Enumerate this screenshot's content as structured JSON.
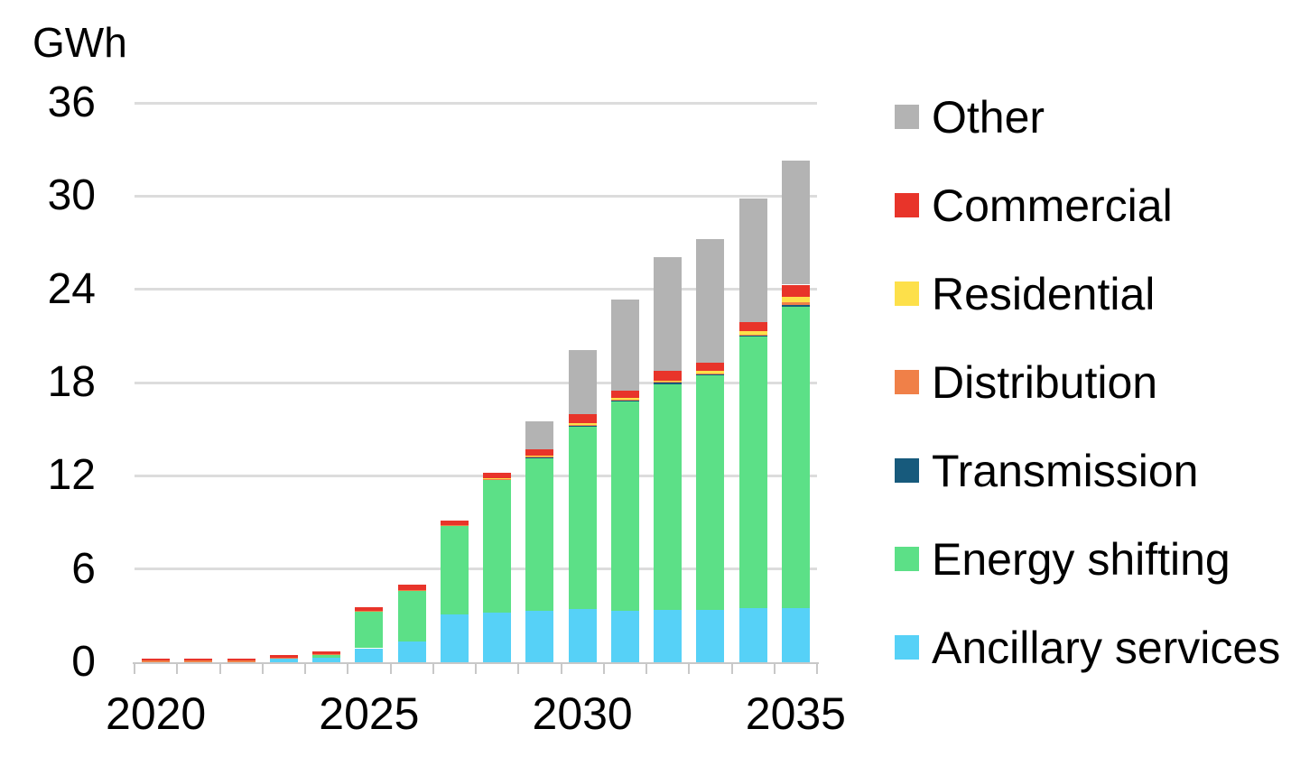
{
  "chart_data": {
    "type": "bar",
    "stacked": true,
    "ylabel": "GWh",
    "xlabel": "",
    "ylim": [
      0,
      36
    ],
    "yticks": [
      0,
      6,
      12,
      18,
      24,
      30,
      36
    ],
    "grid": "horizontal",
    "legend_position": "right",
    "legend_order_top_to_bottom": [
      "Other",
      "Commercial",
      "Residential",
      "Distribution",
      "Transmission",
      "Energy shifting",
      "Ancillary services"
    ],
    "categories": [
      "2020",
      "2021",
      "2022",
      "2023",
      "2024",
      "2025",
      "2026",
      "2027",
      "2028",
      "2029",
      "2030",
      "2031",
      "2032",
      "2033",
      "2034",
      "2035"
    ],
    "xtick_labels": [
      "2020",
      "2025",
      "2030",
      "2035"
    ],
    "xtick_category_indexes": [
      0,
      5,
      10,
      15
    ],
    "series": [
      {
        "name": "Ancillary services",
        "color": "#56d1f7",
        "values": [
          0,
          0,
          0,
          0.25,
          0.29,
          0.9,
          1.33,
          3.07,
          3.2,
          3.3,
          3.4,
          3.33,
          3.35,
          3.35,
          3.49,
          3.5
        ]
      },
      {
        "name": "Energy shifting",
        "color": "#5ce087",
        "values": [
          0,
          0,
          0,
          0.03,
          0.23,
          2.4,
          3.3,
          5.73,
          8.55,
          9.8,
          11.77,
          13.47,
          14.55,
          15.15,
          17.5,
          19.4
        ]
      },
      {
        "name": "Transmission",
        "color": "#175a7c",
        "values": [
          0,
          0,
          0,
          0,
          0,
          0,
          0,
          0,
          0.02,
          0.06,
          0.03,
          0.02,
          0.08,
          0.03,
          0.03,
          0.1
        ]
      },
      {
        "name": "Distribution",
        "color": "#f08048",
        "values": [
          0.1,
          0.1,
          0.1,
          0.02,
          0.02,
          0.02,
          0.03,
          0.03,
          0.02,
          0.05,
          0.06,
          0.05,
          0.05,
          0.06,
          0.06,
          0.14
        ]
      },
      {
        "name": "Residential",
        "color": "#fde04a",
        "values": [
          0,
          0,
          0,
          0,
          0,
          0,
          0,
          0,
          0.04,
          0.06,
          0.1,
          0.14,
          0.1,
          0.19,
          0.22,
          0.35
        ]
      },
      {
        "name": "Commercial",
        "color": "#e8342a",
        "values": [
          0.12,
          0.13,
          0.12,
          0.15,
          0.15,
          0.2,
          0.35,
          0.3,
          0.35,
          0.45,
          0.6,
          0.45,
          0.6,
          0.52,
          0.58,
          0.81
        ]
      },
      {
        "name": "Other",
        "color": "#b3b3b3",
        "values": [
          0,
          0,
          0,
          0,
          0,
          0,
          0,
          0,
          0,
          1.77,
          4.11,
          5.86,
          7.35,
          7.95,
          7.95,
          8.0
        ]
      }
    ]
  },
  "colors": {
    "gridline": "#dcdcdc",
    "axis": "#c8c8c8",
    "text": "#000000",
    "background": "#ffffff"
  }
}
